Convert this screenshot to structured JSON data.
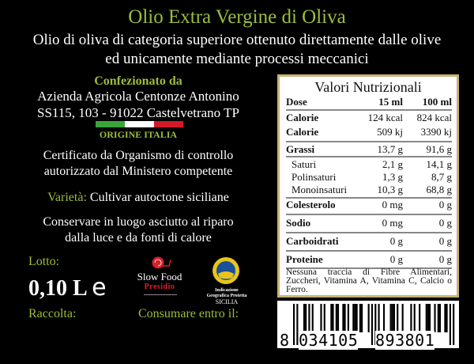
{
  "header": {
    "title": "Olio Extra Vergine di Oliva",
    "subtitle_line1": "Olio di oliva di categoria superiore ottenuto direttamente dalle olive",
    "subtitle_line2": "ed unicamente mediante processi meccanici"
  },
  "producer": {
    "heading": "Confezionato da",
    "line1": "Azienda Agricola Centonze Antonino",
    "line2": "SS115, 103 - 91022 Castelvetrano TP",
    "origin": "ORIGINE ITALIA",
    "flag_colors": [
      "#3aa43a",
      "#ffffff",
      "#d21a2a"
    ]
  },
  "certification": {
    "line1": "Certificato da Organismo di controllo",
    "line2": "autorizzato dal Ministero competente"
  },
  "variety": {
    "label": "Varietà:",
    "value": "Cultivar autoctone siciliane"
  },
  "storage": {
    "line1": "Conservare in luogo asciutto al riparo",
    "line2": "dalla luce e da fonti di calore"
  },
  "lot": {
    "label": "Lotto:",
    "volume": "0,10 L",
    "estimated_mark": "e"
  },
  "harvest": {
    "label": "Raccolta:"
  },
  "best_before": {
    "label": "Consumare entro il:"
  },
  "logos": {
    "slowfood": {
      "name": "Slow Food",
      "sub": "Presidio",
      "icon": "snail-icon",
      "color": "#d8202a"
    },
    "igp": {
      "line1": "Indicazione",
      "line2": "Geografica Protetta",
      "region": "SICILIA",
      "icon": "igp-seal-icon"
    }
  },
  "nutrition": {
    "title": "Valori Nutrizionali",
    "header": {
      "label": "Dose",
      "a": "15 ml",
      "b": "100 ml"
    },
    "rows": [
      {
        "label": "Calorie",
        "a": "124 kcal",
        "b": "824 kcal"
      },
      {
        "label": "Calorie",
        "a": "509 kj",
        "b": "3390 kj"
      },
      {
        "label": "Grassi",
        "a": "13,7 g",
        "b": "91,6 g"
      },
      {
        "label": "Saturi",
        "a": "2,1 g",
        "b": "14,1 g"
      },
      {
        "label": "Polinsaturi",
        "a": "1,3 g",
        "b": "8,7 g"
      },
      {
        "label": "Monoinsaturi",
        "a": "10,3 g",
        "b": "68,8 g"
      },
      {
        "label": "Colesterolo",
        "a": "0 mg",
        "b": "0 g"
      },
      {
        "label": "Sodio",
        "a": "0 mg",
        "b": "0 g"
      },
      {
        "label": "Carboidrati",
        "a": "0 g",
        "b": "0 g"
      },
      {
        "label": "Proteine",
        "a": "0 g",
        "b": "0 g"
      }
    ],
    "footnote": "Nessuna traccia di Fibre Alimentari, Zuccheri, Vitamina A, Vitamina C, Calcio o Ferro.",
    "border_color": "#c8b274"
  },
  "barcode": {
    "first": "8",
    "left": "034105",
    "right": "893801"
  }
}
